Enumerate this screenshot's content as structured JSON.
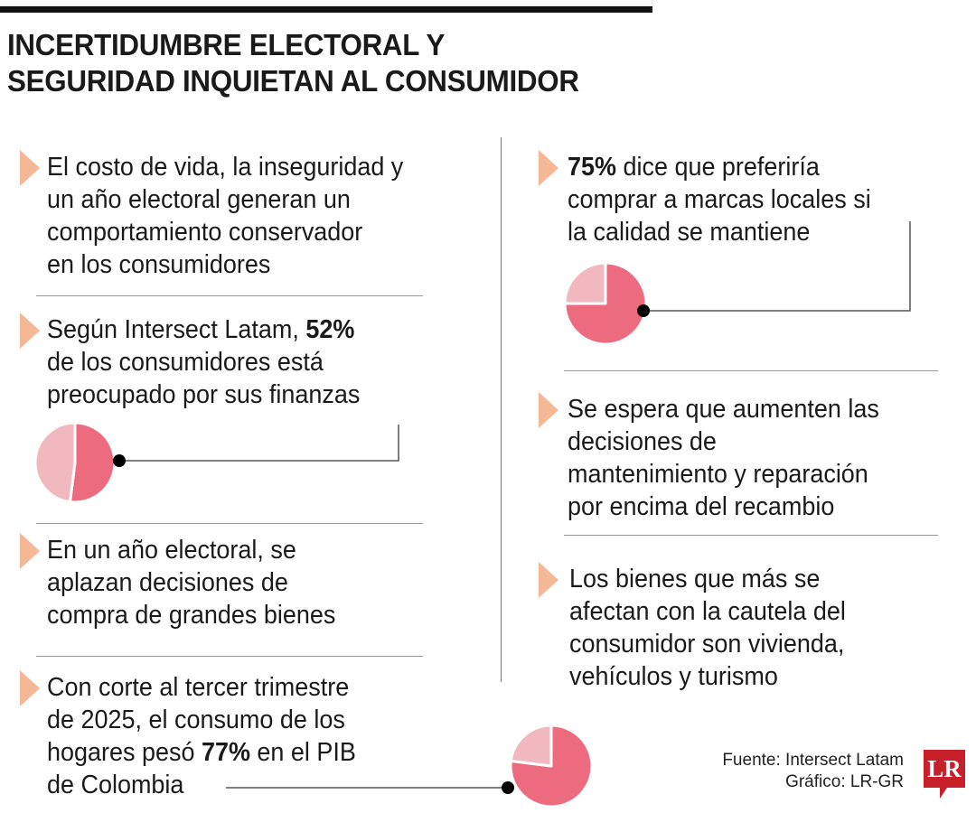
{
  "header": {
    "title_lines": [
      "INCERTIDUMBRE ELECTORAL Y",
      "SEGURIDAD INQUIETAN AL CONSUMIDOR"
    ]
  },
  "items": [
    {
      "lines": [
        [
          "El costo de vida, la inseguridad y",
          "",
          ""
        ],
        [
          "un año electoral generan un",
          "",
          ""
        ],
        [
          "comportamiento conservador",
          "",
          ""
        ],
        [
          "en los consumidores",
          "",
          ""
        ]
      ]
    },
    {
      "lines": [
        [
          "Según Intersect Latam, ",
          "52%",
          ""
        ],
        [
          "de los consumidores está",
          "",
          ""
        ],
        [
          "preocupado por sus finanzas",
          "",
          ""
        ]
      ]
    },
    {
      "lines": [
        [
          "En un año electoral, se",
          "",
          ""
        ],
        [
          "aplazan decisiones de",
          "",
          ""
        ],
        [
          "compra de grandes bienes",
          "",
          ""
        ]
      ]
    },
    {
      "lines": [
        [
          "Con corte al tercer trimestre",
          "",
          ""
        ],
        [
          "de 2025, el consumo de los",
          "",
          ""
        ],
        [
          "hogares pesó ",
          "77%",
          " en el PIB"
        ],
        [
          "de Colombia",
          "",
          ""
        ]
      ]
    },
    {
      "lines": [
        [
          "",
          "75%",
          " dice que preferiría"
        ],
        [
          "comprar a marcas locales si",
          "",
          ""
        ],
        [
          "la calidad se mantiene",
          "",
          ""
        ]
      ]
    },
    {
      "lines": [
        [
          "Se espera que aumenten las",
          "",
          ""
        ],
        [
          "decisiones de",
          "",
          ""
        ],
        [
          "mantenimiento y reparación",
          "",
          ""
        ],
        [
          "por encima del recambio",
          "",
          ""
        ]
      ]
    },
    {
      "lines": [
        [
          "Los bienes que más se",
          "",
          ""
        ],
        [
          "afectan con la cautela del",
          "",
          ""
        ],
        [
          "consumidor son vivienda,",
          "",
          ""
        ],
        [
          "vehículos y turismo",
          "",
          ""
        ]
      ]
    }
  ],
  "footer": {
    "source": "Fuente: Intersect Latam",
    "credit": "Gráfico: LR-GR",
    "logo_text": "LR"
  },
  "colors": {
    "highlight": "#ec6b7f",
    "remainder": "#f2b8bf",
    "arrow": "#f5b896",
    "logo": "#c8202a"
  },
  "chart_data": [
    {
      "type": "pie",
      "values": [
        52,
        48
      ],
      "unit": "%"
    },
    {
      "type": "pie",
      "values": [
        75,
        25
      ],
      "unit": "%"
    },
    {
      "type": "pie",
      "values": [
        77,
        23
      ],
      "unit": "%"
    }
  ]
}
